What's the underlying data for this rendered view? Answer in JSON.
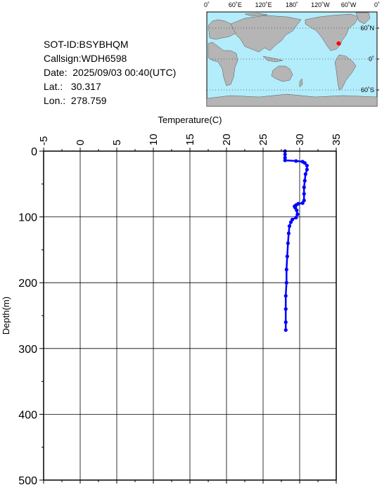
{
  "info": {
    "sot_id": "SOT-ID:BSYBHQM",
    "callsign": "Callsign:WDH6598",
    "date_label": "Date:",
    "date_value": "2025/09/03 00:40(UTC)",
    "lat_label": "Lat.:",
    "lat_value": "30.317",
    "lon_label": "Lon.:",
    "lon_value": "278.759"
  },
  "map": {
    "top_labels": [
      "0˚",
      "60˚E",
      "120˚E",
      "180˚",
      "120˚W",
      "60˚W",
      "0˚"
    ],
    "right_labels": [
      "60˚N",
      "0˚",
      "60˚S"
    ],
    "ocean_color": "#b3ecfa",
    "land_color": "#b5b5b5",
    "marker": {
      "lon": 278.759,
      "lat": 30.317,
      "color": "#ff0000"
    }
  },
  "chart_data": {
    "type": "line",
    "xlabel": "Temperature(C)",
    "ylabel": "Depth(m)",
    "xlim": [
      -5,
      35
    ],
    "ylim": [
      0,
      500
    ],
    "x_ticks": [
      "-5",
      "0",
      "5",
      "10",
      "15",
      "20",
      "25",
      "30",
      "35"
    ],
    "y_ticks": [
      "0",
      "100",
      "200",
      "300",
      "400",
      "500"
    ],
    "series": [
      {
        "color": "#0000ff",
        "points": [
          [
            28.0,
            0
          ],
          [
            28.0,
            5
          ],
          [
            28.0,
            10
          ],
          [
            28.0,
            14
          ],
          [
            29.5,
            15
          ],
          [
            30.4,
            16
          ],
          [
            30.7,
            18
          ],
          [
            31.0,
            22
          ],
          [
            31.0,
            28
          ],
          [
            30.8,
            35
          ],
          [
            30.7,
            45
          ],
          [
            30.6,
            55
          ],
          [
            30.6,
            65
          ],
          [
            30.6,
            75
          ],
          [
            30.4,
            79
          ],
          [
            29.8,
            80
          ],
          [
            29.5,
            82
          ],
          [
            29.3,
            84
          ],
          [
            29.4,
            86
          ],
          [
            29.6,
            90
          ],
          [
            29.7,
            96
          ],
          [
            29.5,
            101
          ],
          [
            29.0,
            104
          ],
          [
            28.8,
            108
          ],
          [
            28.6,
            114
          ],
          [
            28.5,
            125
          ],
          [
            28.4,
            140
          ],
          [
            28.3,
            160
          ],
          [
            28.2,
            180
          ],
          [
            28.2,
            200
          ],
          [
            28.1,
            220
          ],
          [
            28.1,
            240
          ],
          [
            28.1,
            260
          ],
          [
            28.1,
            272
          ]
        ]
      }
    ]
  }
}
